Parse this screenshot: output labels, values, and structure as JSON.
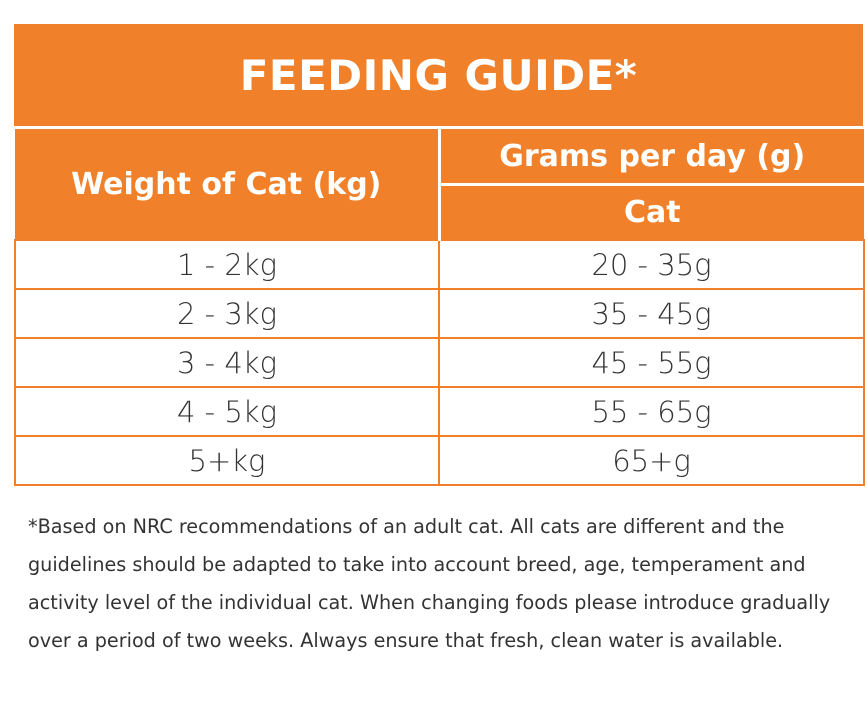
{
  "title": "FEEDING GUIDE*",
  "table": {
    "weight_header": "Weight of Cat (kg)",
    "grams_header": "Grams per day (g)",
    "cat_header": "Cat",
    "rows": [
      {
        "weight": "1 - 2kg",
        "grams": "20 - 35g"
      },
      {
        "weight": "2 - 3kg",
        "grams": "35 - 45g"
      },
      {
        "weight": "3 - 4kg",
        "grams": "45 - 55g"
      },
      {
        "weight": "4 - 5kg",
        "grams": "55 - 65g"
      },
      {
        "weight": "5+kg",
        "grams": "65+g"
      }
    ]
  },
  "footnote": "*Based on NRC recommendations of an adult cat. All cats are different and the guidelines should be adapted to take into account breed, age, temperament and activity level of the individual cat. When changing foods please introduce gradually over a period of two weeks. Always ensure that fresh, clean water is available.",
  "colors": {
    "accent": "#F0812A",
    "text": "#333333"
  }
}
